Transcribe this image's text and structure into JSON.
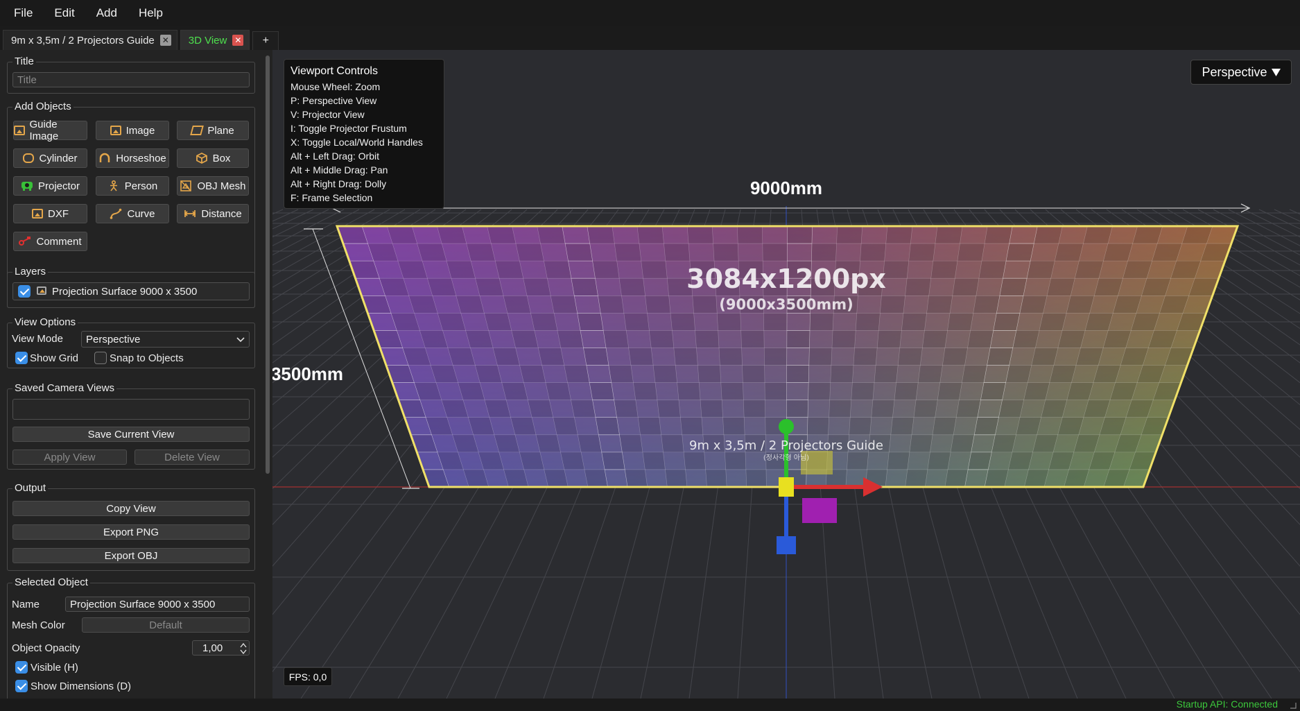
{
  "menu": [
    "File",
    "Edit",
    "Add",
    "Help"
  ],
  "tabs": [
    {
      "label": "9m x 3,5m / 2 Projectors Guide",
      "close": "✕"
    },
    {
      "label": "3D View",
      "close": "✕"
    }
  ],
  "tab_add": "+",
  "panel": {
    "title_group": "Title",
    "title_placeholder": "Title",
    "add_objects_group": "Add Objects",
    "add_buttons": {
      "guide_image": "Guide Image",
      "image": "Image",
      "plane": "Plane",
      "cylinder": "Cylinder",
      "horseshoe": "Horseshoe",
      "box": "Box",
      "projector": "Projector",
      "person": "Person",
      "obj_mesh": "OBJ Mesh",
      "dxf": "DXF",
      "curve": "Curve",
      "distance": "Distance",
      "comment": "Comment"
    },
    "layers_group": "Layers",
    "layer_item": "Projection Surface 9000 x 3500",
    "view_options_group": "View Options",
    "view_mode_label": "View Mode",
    "view_mode_value": "Perspective",
    "show_grid": "Show Grid",
    "snap_to_objects": "Snap to Objects",
    "saved_camera_group": "Saved Camera Views",
    "save_current_view": "Save Current View",
    "apply_view": "Apply View",
    "delete_view": "Delete View",
    "output_group": "Output",
    "copy_view": "Copy View",
    "export_png": "Export PNG",
    "export_obj": "Export OBJ",
    "selected_group": "Selected Object",
    "name_label": "Name",
    "name_value": "Projection Surface 9000 x 3500",
    "mesh_color_label": "Mesh Color",
    "mesh_color_value": "Default",
    "opacity_label": "Object Opacity",
    "opacity_value": "1,00",
    "visible": "Visible (H)",
    "show_dimensions": "Show Dimensions (D)"
  },
  "viewport": {
    "controls_title": "Viewport Controls",
    "controls": [
      "Mouse Wheel: Zoom",
      "P: Perspective View",
      "V: Projector View",
      "I: Toggle Projector Frustum",
      "X: Toggle Local/World Handles",
      "Alt + Left Drag: Orbit",
      "Alt + Middle Drag: Pan",
      "Alt + Right Drag: Dolly",
      "F: Frame Selection"
    ],
    "perspective_dd": "Perspective",
    "width_dim": "9000mm",
    "height_dim": "3500mm",
    "resolution": "3084x1200px",
    "mm_size": "(9000x3500mm)",
    "guide_title": "9m x 3,5m / 2 Projectors Guide",
    "guide_subtitle": "(정사각형 아님)",
    "fps": "FPS: 0,0",
    "grid_cols": 36,
    "grid_rows": 15
  },
  "status": "Startup API: Connected",
  "colors": {
    "accent_green": "#4ee04e",
    "checkbox_blue": "#3a8ee6",
    "surface_border": "#f0e068",
    "axis_x": "#d93030",
    "axis_y": "#2bc02b",
    "axis_z": "#2a5ad9"
  }
}
